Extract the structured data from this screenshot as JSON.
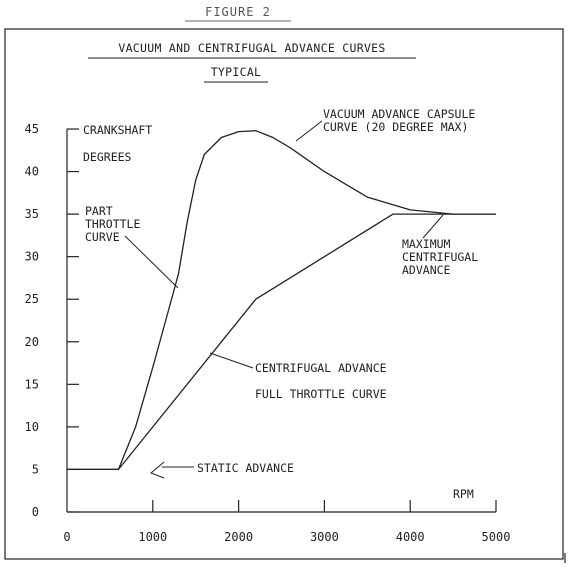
{
  "figure_label": "FIGURE 2",
  "chart_data": {
    "type": "line",
    "title": "VACUUM AND CENTRIFUGAL ADVANCE CURVES",
    "subtitle": "TYPICAL",
    "xlabel": "RPM",
    "ylabel_lines": [
      "CRANKSHAFT",
      "DEGREES"
    ],
    "xlim": [
      0,
      5000
    ],
    "ylim": [
      0,
      45
    ],
    "x_ticks": [
      0,
      1000,
      2000,
      3000,
      4000,
      5000
    ],
    "y_ticks": [
      0,
      5,
      10,
      15,
      20,
      25,
      30,
      35,
      40,
      45
    ],
    "grid": false,
    "series": [
      {
        "name": "PART THROTTLE CURVE",
        "points": [
          [
            0,
            5
          ],
          [
            600,
            5
          ],
          [
            800,
            10
          ],
          [
            1000,
            17
          ],
          [
            1150,
            22.5
          ],
          [
            1300,
            28
          ],
          [
            1400,
            34
          ],
          [
            1500,
            39
          ],
          [
            1600,
            42
          ],
          [
            1800,
            44
          ],
          [
            2000,
            44.7
          ],
          [
            2200,
            44.8
          ],
          [
            2400,
            44
          ],
          [
            2600,
            42.8
          ],
          [
            3000,
            40
          ],
          [
            3500,
            37
          ],
          [
            4000,
            35.5
          ],
          [
            4500,
            35
          ],
          [
            5000,
            35
          ]
        ]
      },
      {
        "name": "CENTRIFUGAL ADVANCE FULL THROTTLE CURVE",
        "points": [
          [
            0,
            5
          ],
          [
            600,
            5
          ],
          [
            2200,
            25
          ],
          [
            3800,
            35
          ],
          [
            5000,
            35
          ]
        ]
      }
    ],
    "annotations": [
      {
        "id": "vacuum",
        "lines": [
          "VACUUM ADVANCE CAPSULE",
          "CURVE (20 DEGREE MAX)"
        ]
      },
      {
        "id": "part",
        "lines": [
          "PART",
          "THROTTLE",
          "CURVE"
        ]
      },
      {
        "id": "maxcent",
        "lines": [
          "MAXIMUM",
          "CENTRIFUGAL",
          "ADVANCE"
        ]
      },
      {
        "id": "centrifugal",
        "lines": [
          "CENTRIFUGAL ADVANCE",
          "FULL THROTTLE CURVE"
        ]
      },
      {
        "id": "static",
        "lines": [
          "STATIC ADVANCE"
        ]
      }
    ]
  }
}
